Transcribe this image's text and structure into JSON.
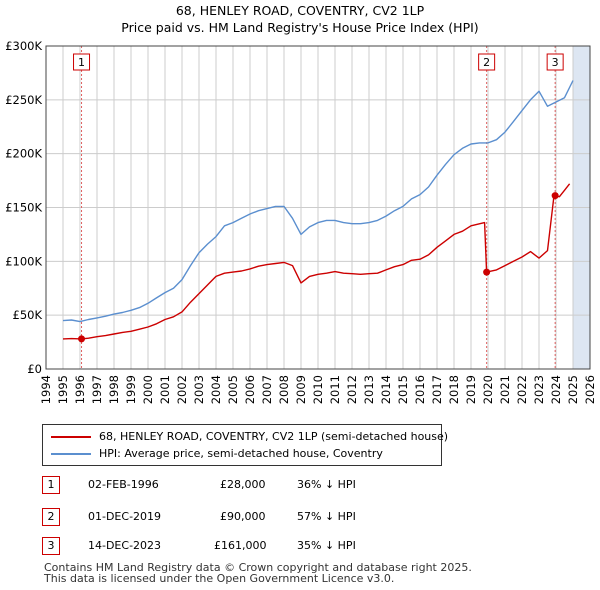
{
  "title": "68, HENLEY ROAD, COVENTRY, CV2 1LP",
  "subtitle": "Price paid vs. HM Land Registry's House Price Index (HPI)",
  "legend": {
    "property": "68, HENLEY ROAD, COVENTRY, CV2 1LP (semi-detached house)",
    "hpi": "HPI: Average price, semi-detached house, Coventry"
  },
  "colors": {
    "property": "#cc0000",
    "hpi": "#5b8fcf",
    "future_band": "#dde6f2",
    "sale_line": "#e06060"
  },
  "transactions": [
    {
      "num": "1",
      "date": "02-FEB-1996",
      "price": "£28,000",
      "hpi_diff": "36% ↓ HPI"
    },
    {
      "num": "2",
      "date": "01-DEC-2019",
      "price": "£90,000",
      "hpi_diff": "57% ↓ HPI"
    },
    {
      "num": "3",
      "date": "14-DEC-2023",
      "price": "£161,000",
      "hpi_diff": "35% ↓ HPI"
    }
  ],
  "footer": {
    "line1": "Contains HM Land Registry data © Crown copyright and database right 2025.",
    "line2": "This data is licensed under the Open Government Licence v3.0."
  },
  "chart_data": {
    "type": "line",
    "title": "68, HENLEY ROAD, COVENTRY, CV2 1LP",
    "subtitle": "Price paid vs. HM Land Registry's House Price Index (HPI)",
    "xlabel": "",
    "ylabel": "",
    "xlim": [
      1994,
      2026
    ],
    "ylim": [
      0,
      300000
    ],
    "y_ticks": [
      {
        "value": 0,
        "label": "£0"
      },
      {
        "value": 50000,
        "label": "£50K"
      },
      {
        "value": 100000,
        "label": "£100K"
      },
      {
        "value": 150000,
        "label": "£150K"
      },
      {
        "value": 200000,
        "label": "£200K"
      },
      {
        "value": 250000,
        "label": "£250K"
      },
      {
        "value": 300000,
        "label": "£300K"
      }
    ],
    "x_ticks": [
      "1994",
      "1995",
      "1996",
      "1997",
      "1998",
      "1999",
      "2000",
      "2001",
      "2002",
      "2003",
      "2004",
      "2005",
      "2006",
      "2007",
      "2008",
      "2009",
      "2010",
      "2011",
      "2012",
      "2013",
      "2014",
      "2015",
      "2016",
      "2017",
      "2018",
      "2019",
      "2020",
      "2021",
      "2022",
      "2023",
      "2024",
      "2025",
      "2026"
    ],
    "grid": true,
    "future_band_start": 2025.0,
    "series": [
      {
        "name": "68, HENLEY ROAD, COVENTRY, CV2 1LP (semi-detached house)",
        "color": "#cc0000",
        "x": [
          1995.0,
          1995.5,
          1996.09,
          1996.5,
          1997.0,
          1997.5,
          1998.0,
          1998.5,
          1999.0,
          1999.5,
          2000.0,
          2000.5,
          2001.0,
          2001.5,
          2002.0,
          2002.5,
          2003.0,
          2003.5,
          2004.0,
          2004.5,
          2005.0,
          2005.5,
          2006.0,
          2006.5,
          2007.0,
          2007.5,
          2008.0,
          2008.5,
          2009.0,
          2009.5,
          2010.0,
          2010.5,
          2011.0,
          2011.5,
          2012.0,
          2012.5,
          2013.0,
          2013.5,
          2014.0,
          2014.5,
          2015.0,
          2015.5,
          2016.0,
          2016.5,
          2017.0,
          2017.5,
          2018.0,
          2018.5,
          2019.0,
          2019.8,
          2019.92,
          2020.5,
          2021.0,
          2021.5,
          2022.0,
          2022.5,
          2023.0,
          2023.5,
          2023.88,
          2024.2,
          2024.5,
          2024.8
        ],
        "values": [
          28000,
          28200,
          28000,
          28600,
          30000,
          31000,
          32500,
          34000,
          35000,
          37000,
          39000,
          42000,
          46000,
          48500,
          53000,
          62000,
          70000,
          78000,
          86000,
          89000,
          90000,
          91000,
          93000,
          95500,
          97000,
          98000,
          99000,
          96000,
          80000,
          86000,
          88000,
          89000,
          90500,
          89000,
          88500,
          88000,
          88500,
          89000,
          92000,
          95000,
          97000,
          101000,
          102000,
          106000,
          113000,
          119000,
          125000,
          128000,
          133000,
          136000,
          90000,
          92000,
          96000,
          100000,
          104000,
          109000,
          103000,
          110000,
          161000,
          160000,
          166000,
          172000
        ]
      },
      {
        "name": "HPI: Average price, semi-detached house, Coventry",
        "color": "#5b8fcf",
        "x": [
          1995.0,
          1995.5,
          1996.0,
          1996.5,
          1997.0,
          1997.5,
          1998.0,
          1998.5,
          1999.0,
          1999.5,
          2000.0,
          2000.5,
          2001.0,
          2001.5,
          2002.0,
          2002.5,
          2003.0,
          2003.5,
          2004.0,
          2004.5,
          2005.0,
          2005.5,
          2006.0,
          2006.5,
          2007.0,
          2007.5,
          2008.0,
          2008.5,
          2009.0,
          2009.5,
          2010.0,
          2010.5,
          2011.0,
          2011.5,
          2012.0,
          2012.5,
          2013.0,
          2013.5,
          2014.0,
          2014.5,
          2015.0,
          2015.5,
          2016.0,
          2016.5,
          2017.0,
          2017.5,
          2018.0,
          2018.5,
          2019.0,
          2019.5,
          2020.0,
          2020.5,
          2021.0,
          2021.5,
          2022.0,
          2022.5,
          2023.0,
          2023.5,
          2024.0,
          2024.5,
          2025.0
        ],
        "values": [
          45000,
          45500,
          44000,
          46000,
          47500,
          49000,
          51000,
          52500,
          54500,
          57000,
          61000,
          66000,
          71000,
          75000,
          83000,
          96000,
          108000,
          116000,
          123000,
          133000,
          136000,
          140000,
          144000,
          147000,
          149000,
          151000,
          151000,
          140000,
          125000,
          132000,
          136000,
          138000,
          138000,
          136000,
          135000,
          135000,
          136000,
          138000,
          142000,
          147000,
          151000,
          158000,
          162000,
          169000,
          180000,
          190000,
          199000,
          205000,
          209000,
          210000,
          210000,
          213000,
          220000,
          230000,
          240000,
          250000,
          258000,
          244000,
          248000,
          252000,
          268000
        ]
      }
    ],
    "sales": [
      {
        "label": "1",
        "x": 1996.09,
        "value": 28000
      },
      {
        "label": "2",
        "x": 2019.92,
        "value": 90000
      },
      {
        "label": "3",
        "x": 2023.95,
        "value": 161000
      }
    ]
  }
}
